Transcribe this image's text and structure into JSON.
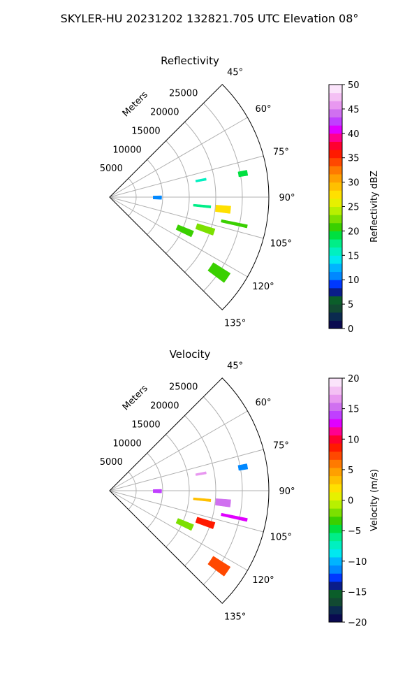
{
  "suptitle": "SKYLER-HU  20231202  132821.705 UTC Elevation 08°",
  "chart_data": [
    {
      "type": "heatmap",
      "title": "Reflectivity",
      "range_label": "Meters",
      "range_ticks": [
        "5000",
        "10000",
        "15000",
        "20000",
        "25000"
      ],
      "range_values": [
        5000,
        10000,
        15000,
        20000,
        25000
      ],
      "range_max": 30000,
      "azimuth_ticks": [
        "45°",
        "60°",
        "75°",
        "90°",
        "105°",
        "120°",
        "135°"
      ],
      "azimuth_values": [
        45,
        60,
        75,
        90,
        105,
        120,
        135
      ],
      "azimuth_range": [
        45,
        135
      ],
      "grid": true,
      "colorbar": {
        "label": "Reflectivity dBZ",
        "min": 0,
        "max": 50,
        "ticks": [
          "0",
          "5",
          "10",
          "15",
          "20",
          "25",
          "30",
          "35",
          "40",
          "45",
          "50"
        ],
        "tick_values": [
          0,
          5,
          10,
          15,
          20,
          25,
          30,
          35,
          40,
          45,
          50
        ],
        "colors": [
          "#0a0a50",
          "#0b2a4f",
          "#124a32",
          "#0b5e2a",
          "#0a1d8a",
          "#0038ff",
          "#0088ff",
          "#00b4ff",
          "#00e8f0",
          "#00f0c0",
          "#00ee88",
          "#00e040",
          "#3ad000",
          "#7ce000",
          "#b8f000",
          "#e6f000",
          "#ffe000",
          "#ffc000",
          "#ffa000",
          "#ff7a00",
          "#ff4800",
          "#ff1a00",
          "#ff0030",
          "#ff0090",
          "#e000ff",
          "#c040ff",
          "#d070f0",
          "#e898f0",
          "#f4c0f4",
          "#fbe4fb"
        ]
      },
      "echoes": [
        {
          "az": 90.5,
          "rng": 9000,
          "daz": 4.0,
          "drng": 1600,
          "value": 11
        },
        {
          "az": 79.5,
          "rng": 17500,
          "daz": 1.3,
          "drng": 2000,
          "value": 15
        },
        {
          "az": 80.0,
          "rng": 25500,
          "daz": 2.2,
          "drng": 1700,
          "value": 19
        },
        {
          "az": 95.5,
          "rng": 17500,
          "daz": 1.4,
          "drng": 3300,
          "value": 17
        },
        {
          "az": 96.0,
          "rng": 21500,
          "daz": 3.5,
          "drng": 2800,
          "value": 27
        },
        {
          "az": 102.0,
          "rng": 24000,
          "daz": 1.3,
          "drng": 5000,
          "value": 20
        },
        {
          "az": 114.0,
          "rng": 15500,
          "daz": 4.0,
          "drng": 3200,
          "value": 20
        },
        {
          "az": 108.5,
          "rng": 19000,
          "daz": 3.5,
          "drng": 3500,
          "value": 23
        },
        {
          "az": 124.5,
          "rng": 25000,
          "daz": 4.5,
          "drng": 3800,
          "value": 20
        }
      ]
    },
    {
      "type": "heatmap",
      "title": "Velocity",
      "range_label": "Meters",
      "range_ticks": [
        "5000",
        "10000",
        "15000",
        "20000",
        "25000"
      ],
      "range_values": [
        5000,
        10000,
        15000,
        20000,
        25000
      ],
      "range_max": 30000,
      "azimuth_ticks": [
        "45°",
        "60°",
        "75°",
        "90°",
        "105°",
        "120°",
        "135°"
      ],
      "azimuth_values": [
        45,
        60,
        75,
        90,
        105,
        120,
        135
      ],
      "azimuth_range": [
        45,
        135
      ],
      "grid": true,
      "colorbar": {
        "label": "Velocity (m/s)",
        "min": -20,
        "max": 20,
        "ticks": [
          "−20",
          "−15",
          "−10",
          "−5",
          "0",
          "5",
          "10",
          "15",
          "20"
        ],
        "tick_values": [
          -20,
          -15,
          -10,
          -5,
          0,
          5,
          10,
          15,
          20
        ],
        "colors": [
          "#0a0a50",
          "#0b2a4f",
          "#124a32",
          "#0b5e2a",
          "#0a1d8a",
          "#0038ff",
          "#0088ff",
          "#00b4ff",
          "#00e8f0",
          "#00f0c0",
          "#00ee88",
          "#00e040",
          "#3ad000",
          "#7ce000",
          "#b8f000",
          "#e6f000",
          "#ffe000",
          "#ffc000",
          "#ffa000",
          "#ff7a00",
          "#ff4800",
          "#ff1a00",
          "#ff0030",
          "#ff0090",
          "#e000ff",
          "#c040ff",
          "#d070f0",
          "#e898f0",
          "#f4c0f4",
          "#fbe4fb"
        ]
      },
      "echoes": [
        {
          "az": 90.5,
          "rng": 9000,
          "daz": 4.0,
          "drng": 1600,
          "value": 14
        },
        {
          "az": 79.5,
          "rng": 17500,
          "daz": 1.3,
          "drng": 2000,
          "value": 16
        },
        {
          "az": 80.0,
          "rng": 25500,
          "daz": 2.2,
          "drng": 1700,
          "value": -11
        },
        {
          "az": 95.5,
          "rng": 17500,
          "daz": 1.4,
          "drng": 3300,
          "value": 3
        },
        {
          "az": 96.0,
          "rng": 21500,
          "daz": 3.5,
          "drng": 2800,
          "value": 15
        },
        {
          "az": 102.0,
          "rng": 24000,
          "daz": 1.3,
          "drng": 5000,
          "value": 13
        },
        {
          "az": 114.0,
          "rng": 15500,
          "daz": 4.0,
          "drng": 3200,
          "value": -2
        },
        {
          "az": 108.5,
          "rng": 19000,
          "daz": 3.5,
          "drng": 3500,
          "value": 9
        },
        {
          "az": 124.5,
          "rng": 25000,
          "daz": 4.5,
          "drng": 3800,
          "value": 7
        }
      ]
    }
  ]
}
